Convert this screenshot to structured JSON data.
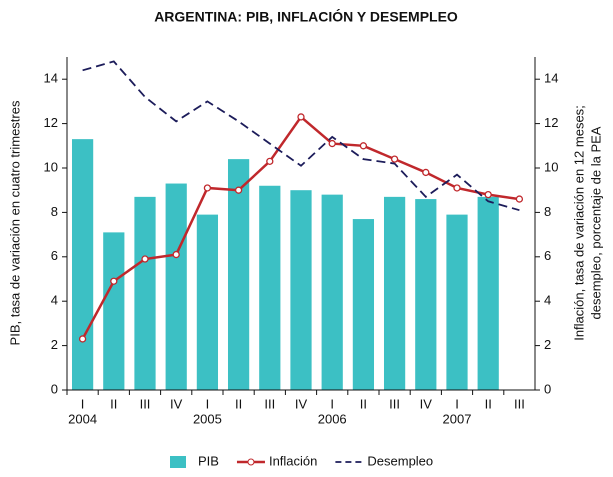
{
  "chart_data": {
    "type": "bar_line",
    "title": "ARGENTINA: PIB, INFLACIÓN Y DESEMPLEO",
    "ylabel": "PIB, tasa de variación en cuatro trimestres",
    "y2label": [
      "Inflación, tasa de variación en 12 meses;",
      "desempleo, porcentaje de la PEA"
    ],
    "categories": [
      "I",
      "II",
      "III",
      "IV",
      "I",
      "II",
      "III",
      "IV",
      "I",
      "II",
      "III",
      "IV",
      "I",
      "II",
      "III"
    ],
    "years": [
      "2004",
      "2005",
      "2006",
      "2007"
    ],
    "series": [
      {
        "name": "PIB",
        "type": "bar",
        "color": "#3cc0c4",
        "values": [
          11.3,
          7.1,
          8.7,
          9.3,
          7.9,
          10.4,
          9.2,
          9.0,
          8.8,
          7.7,
          8.7,
          8.6,
          7.9,
          8.7,
          null
        ]
      },
      {
        "name": "Inflación",
        "type": "line",
        "axis": "y2",
        "color": "#c0282c",
        "marker": true,
        "values": [
          2.3,
          4.9,
          5.9,
          6.1,
          9.1,
          9.0,
          10.3,
          12.3,
          11.1,
          11.0,
          10.4,
          9.8,
          9.1,
          8.8,
          8.6
        ]
      },
      {
        "name": "Desempleo",
        "type": "line",
        "axis": "y2",
        "color": "#1c1c5a",
        "dashed": true,
        "values": [
          14.4,
          14.8,
          13.2,
          12.1,
          13.0,
          12.1,
          11.1,
          10.1,
          11.4,
          10.4,
          10.2,
          8.7,
          9.7,
          8.5,
          8.1
        ]
      }
    ],
    "ylim": [
      0,
      15
    ],
    "yticks": [
      0,
      2,
      4,
      6,
      8,
      10,
      12,
      14
    ],
    "y2lim": [
      0,
      15
    ],
    "y2ticks": [
      0,
      2,
      4,
      6,
      8,
      10,
      12,
      14
    ],
    "legend": "bottom"
  }
}
